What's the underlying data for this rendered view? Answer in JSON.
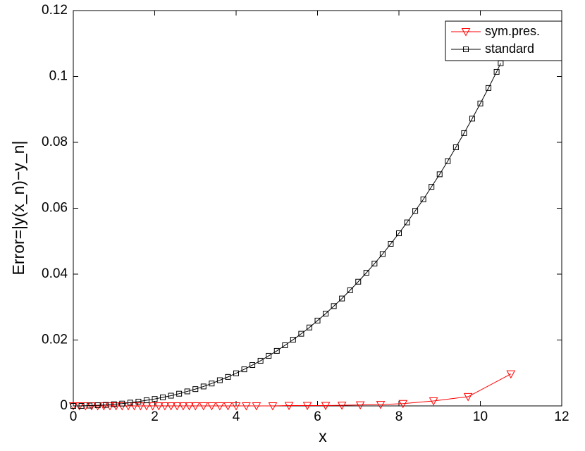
{
  "chart_data": {
    "type": "line",
    "x_label": "x",
    "y_label": "Error=|y(x_n)−y_n|",
    "xlim": [
      0,
      12
    ],
    "ylim": [
      0,
      0.12
    ],
    "xticks": [
      0,
      2,
      4,
      6,
      8,
      10,
      12
    ],
    "yticks": [
      0,
      0.02,
      0.04,
      0.06,
      0.08,
      0.1,
      0.12
    ],
    "grid": false,
    "legend": "upper right",
    "series": [
      {
        "name": "sym.pres.",
        "color": "#ff0000",
        "marker": "triangle-down",
        "x": [
          0,
          0.15,
          0.3,
          0.45,
          0.6,
          0.75,
          0.9,
          1.05,
          1.2,
          1.35,
          1.5,
          1.65,
          1.8,
          1.95,
          2.1,
          2.25,
          2.4,
          2.55,
          2.7,
          2.85,
          3.0,
          3.2,
          3.4,
          3.6,
          3.8,
          4.0,
          4.25,
          4.5,
          4.9,
          5.3,
          5.75,
          6.2,
          6.6,
          7.05,
          7.55,
          8.1,
          8.85,
          9.7,
          10.75
        ],
        "values": [
          0,
          0,
          0,
          0,
          0,
          0,
          0,
          0,
          0,
          0,
          0,
          0,
          0,
          0,
          0,
          0,
          0,
          0,
          0,
          0,
          0,
          0,
          0,
          0,
          0,
          0,
          0,
          0,
          0,
          0.0001,
          0.0001,
          0.0001,
          0.0002,
          0.0003,
          0.0004,
          0.0007,
          0.0015,
          0.0028,
          0.0097
        ]
      },
      {
        "name": "standard",
        "color": "#000000",
        "marker": "square",
        "x": [
          0,
          0.2,
          0.4,
          0.6,
          0.8,
          1.0,
          1.2,
          1.4,
          1.6,
          1.8,
          2.0,
          2.2,
          2.4,
          2.6,
          2.8,
          3.0,
          3.2,
          3.4,
          3.6,
          3.8,
          4.0,
          4.2,
          4.4,
          4.6,
          4.8,
          5.0,
          5.2,
          5.4,
          5.6,
          5.8,
          6.0,
          6.2,
          6.4,
          6.6,
          6.8,
          7.0,
          7.2,
          7.4,
          7.6,
          7.8,
          8.0,
          8.2,
          8.4,
          8.6,
          8.8,
          9.0,
          9.2,
          9.4,
          9.6,
          9.8,
          10.0,
          10.2,
          10.4,
          10.5
        ],
        "values": [
          0,
          0,
          0.0001,
          0.0002,
          0.0003,
          0.0005,
          0.0007,
          0.001,
          0.0013,
          0.0017,
          0.0021,
          0.0026,
          0.0031,
          0.0037,
          0.0044,
          0.0051,
          0.0059,
          0.0068,
          0.0078,
          0.0088,
          0.0099,
          0.0111,
          0.0124,
          0.0137,
          0.0152,
          0.0167,
          0.0184,
          0.0201,
          0.0219,
          0.0238,
          0.0259,
          0.028,
          0.0303,
          0.0326,
          0.0351,
          0.0377,
          0.0404,
          0.0432,
          0.0461,
          0.0492,
          0.0524,
          0.0557,
          0.0592,
          0.0627,
          0.0665,
          0.0703,
          0.0743,
          0.0785,
          0.0828,
          0.0872,
          0.0918,
          0.0965,
          0.1014,
          0.104
        ]
      }
    ]
  }
}
